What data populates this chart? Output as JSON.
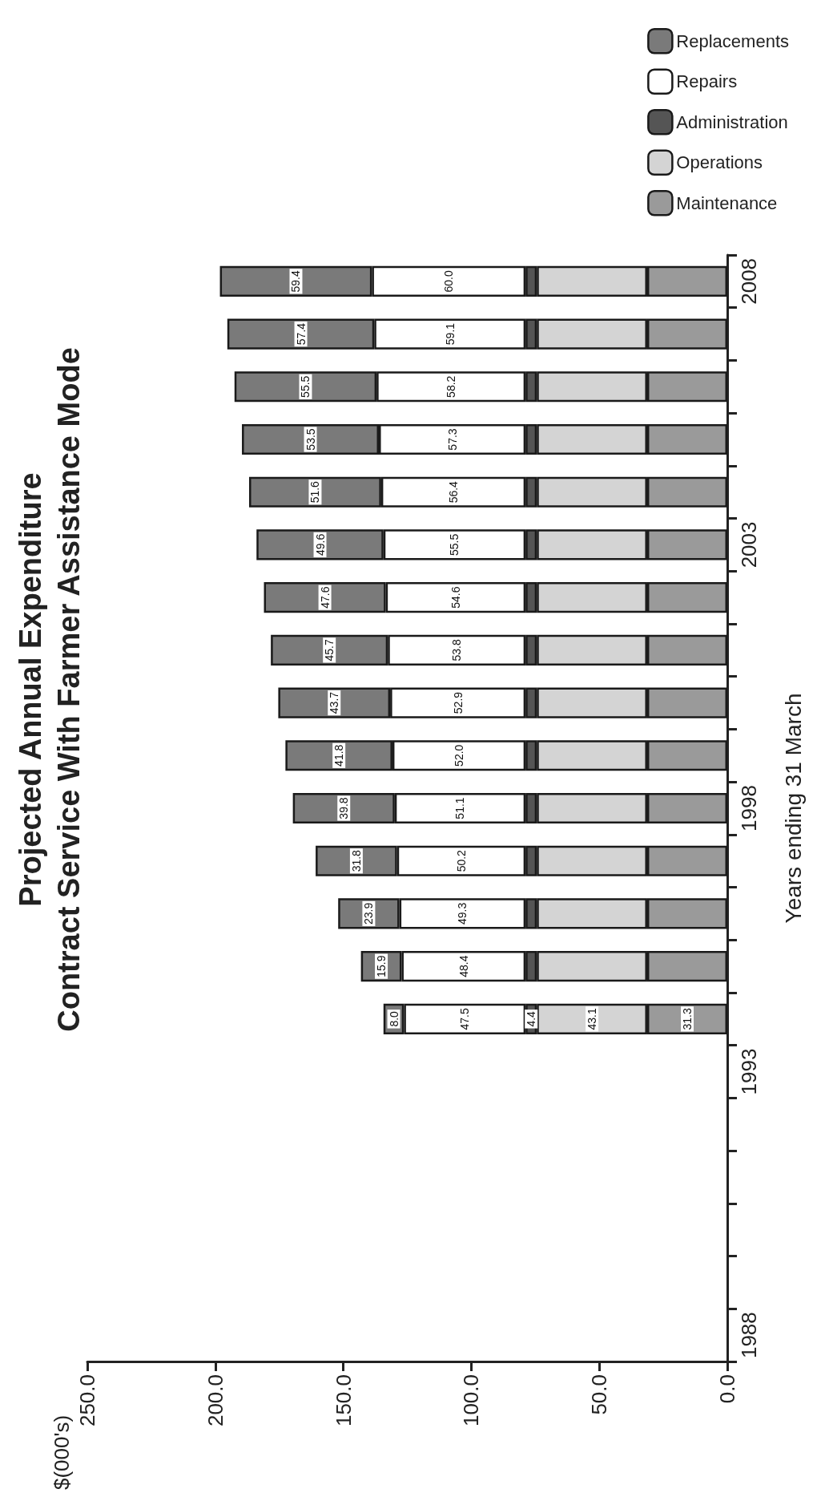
{
  "chart_data": {
    "type": "bar",
    "stacked": true,
    "orientation": "horizontal",
    "title": "Projected Annual Expenditure\nContract Service With Farmer Assistance Mode",
    "ylabel": "Years ending 31 March",
    "annotations": [
      "$(000's)"
    ],
    "categories": [
      "2008",
      null,
      null,
      null,
      null,
      "2003",
      null,
      null,
      null,
      null,
      "1998",
      null,
      null,
      null,
      null,
      "1993",
      null,
      null,
      null,
      null,
      "1988"
    ],
    "xlim": [
      250,
      0
    ],
    "xticks": [
      {
        "value": 250,
        "label": "250.0"
      },
      {
        "value": 200,
        "label": "200.0"
      },
      {
        "value": 150,
        "label": "150.0"
      },
      {
        "value": 100,
        "label": "100.0"
      },
      {
        "value": 50,
        "label": "50.0"
      },
      {
        "value": 0,
        "label": "0.0"
      }
    ],
    "grid": false,
    "legend": "top right",
    "series": [
      {
        "name": "Maintenance",
        "color": "#9a9a9a",
        "values": [
          31.3,
          31.3,
          31.3,
          31.3,
          31.3,
          31.3,
          31.3,
          31.3,
          31.3,
          31.3,
          31.3,
          31.3,
          31.3,
          31.3,
          31.3,
          null,
          null,
          null,
          null,
          null,
          null
        ],
        "value_labels": [
          null,
          null,
          null,
          null,
          null,
          null,
          null,
          null,
          null,
          null,
          null,
          null,
          null,
          null,
          "31.3",
          null,
          null,
          null,
          null,
          null,
          null
        ]
      },
      {
        "name": "Operations",
        "color": "#d4d4d4",
        "values": [
          43.1,
          43.1,
          43.1,
          43.1,
          43.1,
          43.1,
          43.1,
          43.1,
          43.1,
          43.1,
          43.1,
          43.1,
          43.1,
          43.1,
          43.1,
          null,
          null,
          null,
          null,
          null,
          null
        ],
        "value_labels": [
          null,
          null,
          null,
          null,
          null,
          null,
          null,
          null,
          null,
          null,
          null,
          null,
          null,
          null,
          "43.1",
          null,
          null,
          null,
          null,
          null,
          null
        ]
      },
      {
        "name": "Administration",
        "color": "#555555",
        "values": [
          4.4,
          4.4,
          4.4,
          4.4,
          4.4,
          4.4,
          4.4,
          4.4,
          4.4,
          4.4,
          4.4,
          4.4,
          4.4,
          4.4,
          4.4,
          null,
          null,
          null,
          null,
          null,
          null
        ],
        "value_labels": [
          null,
          null,
          null,
          null,
          null,
          null,
          null,
          null,
          null,
          null,
          null,
          null,
          null,
          null,
          "4.4",
          null,
          null,
          null,
          null,
          null,
          null
        ]
      },
      {
        "name": "Repairs",
        "color": "#ffffff",
        "values": [
          60.0,
          59.1,
          58.2,
          57.3,
          56.4,
          55.5,
          54.6,
          53.8,
          52.9,
          52.0,
          51.1,
          50.2,
          49.3,
          48.4,
          47.5,
          null,
          null,
          null,
          null,
          null,
          null
        ],
        "value_labels": [
          "60.0",
          "59.1",
          "58.2",
          "57.3",
          "56.4",
          "55.5",
          "54.6",
          "53.8",
          "52.9",
          "52.0",
          "51.1",
          "50.2",
          "49.3",
          "48.4",
          "47.5",
          null,
          null,
          null,
          null,
          null,
          null
        ]
      },
      {
        "name": "Replacements",
        "color": "#7a7a7a",
        "values": [
          59.4,
          57.4,
          55.5,
          53.5,
          51.6,
          49.6,
          47.6,
          45.7,
          43.7,
          41.8,
          39.8,
          31.8,
          23.9,
          15.9,
          8.0,
          null,
          null,
          null,
          null,
          null,
          null
        ],
        "value_labels": [
          "59.4",
          "57.4",
          "55.5",
          "53.5",
          "51.6",
          "49.6",
          "47.6",
          "45.7",
          "43.7",
          "41.8",
          "39.8",
          "31.8",
          "23.9",
          "15.9",
          "8.0",
          null,
          null,
          null,
          null,
          null,
          null
        ]
      }
    ]
  }
}
